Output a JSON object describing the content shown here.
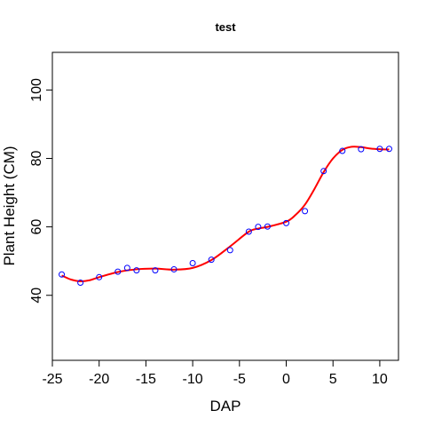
{
  "chart_data": {
    "type": "scatter",
    "title": "test",
    "xlabel": "DAP",
    "ylabel": "Plant Height (CM)",
    "xlim": [
      -25,
      12
    ],
    "ylim": [
      21,
      111
    ],
    "x_ticks": [
      -25,
      -20,
      -15,
      -10,
      -5,
      0,
      5,
      10
    ],
    "y_ticks": [
      40,
      60,
      80,
      100
    ],
    "grid": false,
    "legend": "none",
    "series": [
      {
        "type": "scatter",
        "marker": "open-circle",
        "color": "#0000ff",
        "x": [
          -24,
          -22,
          -20,
          -18,
          -17,
          -16,
          -14,
          -12,
          -10,
          -8,
          -6,
          -4,
          -3,
          -2,
          0,
          2,
          4,
          6,
          8,
          10,
          11
        ],
        "y": [
          46.1,
          43.7,
          45.3,
          46.9,
          48.0,
          47.3,
          47.3,
          47.6,
          49.4,
          50.4,
          53.2,
          58.6,
          60.0,
          60.1,
          61.1,
          64.6,
          76.3,
          82.2,
          82.7,
          82.8,
          82.8
        ]
      },
      {
        "type": "line",
        "smooth": true,
        "color": "#ff0000",
        "x": [
          -24,
          -23,
          -22,
          -21,
          -20,
          -18,
          -16,
          -14,
          -12,
          -10,
          -8,
          -6,
          -4,
          -3,
          -2,
          0,
          1,
          2,
          3,
          4,
          5,
          6,
          7,
          8,
          9,
          10,
          11
        ],
        "y": [
          45.8,
          44.6,
          44.1,
          44.4,
          45.3,
          46.8,
          47.6,
          47.8,
          47.5,
          48.0,
          50.3,
          54.3,
          58.6,
          59.5,
          60.0,
          61.5,
          63.5,
          66.5,
          71.0,
          76.0,
          80.0,
          82.5,
          83.4,
          83.3,
          82.9,
          82.7,
          82.6
        ]
      }
    ]
  }
}
